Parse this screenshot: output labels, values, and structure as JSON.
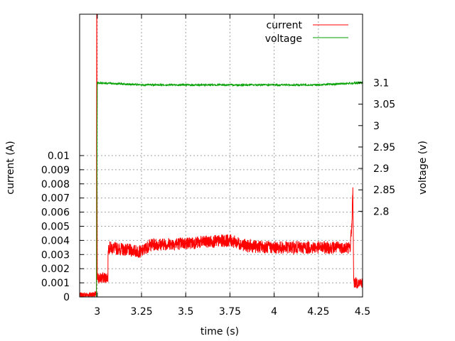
{
  "chart_data": {
    "type": "line",
    "title": "",
    "xlabel": "time (s)",
    "ylabel": "current (A)",
    "y2label": "voltage (v)",
    "xlim": [
      2.9,
      4.5
    ],
    "ylim": [
      0,
      0.02
    ],
    "y2lim": [
      2.6,
      3.26
    ],
    "x_ticks": [
      "3",
      "3.25",
      "3.5",
      "3.75",
      "4",
      "4.25",
      "4.5"
    ],
    "y_ticks": [
      "0",
      "0.001",
      "0.002",
      "0.003",
      "0.004",
      "0.005",
      "0.006",
      "0.007",
      "0.008",
      "0.009",
      "0.01"
    ],
    "y2_ticks": [
      "2.8",
      "2.85",
      "2.9",
      "2.95",
      "3",
      "3.05",
      "3.1"
    ],
    "grid": true,
    "legend_position": "top-right",
    "series": [
      {
        "name": "current",
        "axis": "y",
        "color": "#ff0000",
        "x": [
          2.9,
          2.995,
          2.997,
          2.998,
          3.0,
          3.06,
          3.061,
          3.25,
          3.3,
          3.5,
          3.75,
          3.85,
          4.0,
          4.25,
          4.43,
          4.44,
          4.445,
          4.45,
          4.5
        ],
        "y": [
          0.0001,
          0.0002,
          0.025,
          0.012,
          0.0013,
          0.0014,
          0.0035,
          0.0032,
          0.0037,
          0.0038,
          0.004,
          0.0036,
          0.0035,
          0.0035,
          0.0035,
          0.0053,
          0.0077,
          0.001,
          0.001
        ]
      },
      {
        "name": "voltage",
        "axis": "y2",
        "color": "#00a000",
        "x": [
          2.995,
          3.0,
          3.25,
          3.5,
          3.75,
          4.0,
          4.25,
          4.5
        ],
        "y": [
          2.6,
          3.1,
          3.095,
          3.095,
          3.095,
          3.095,
          3.095,
          3.1
        ]
      }
    ]
  }
}
